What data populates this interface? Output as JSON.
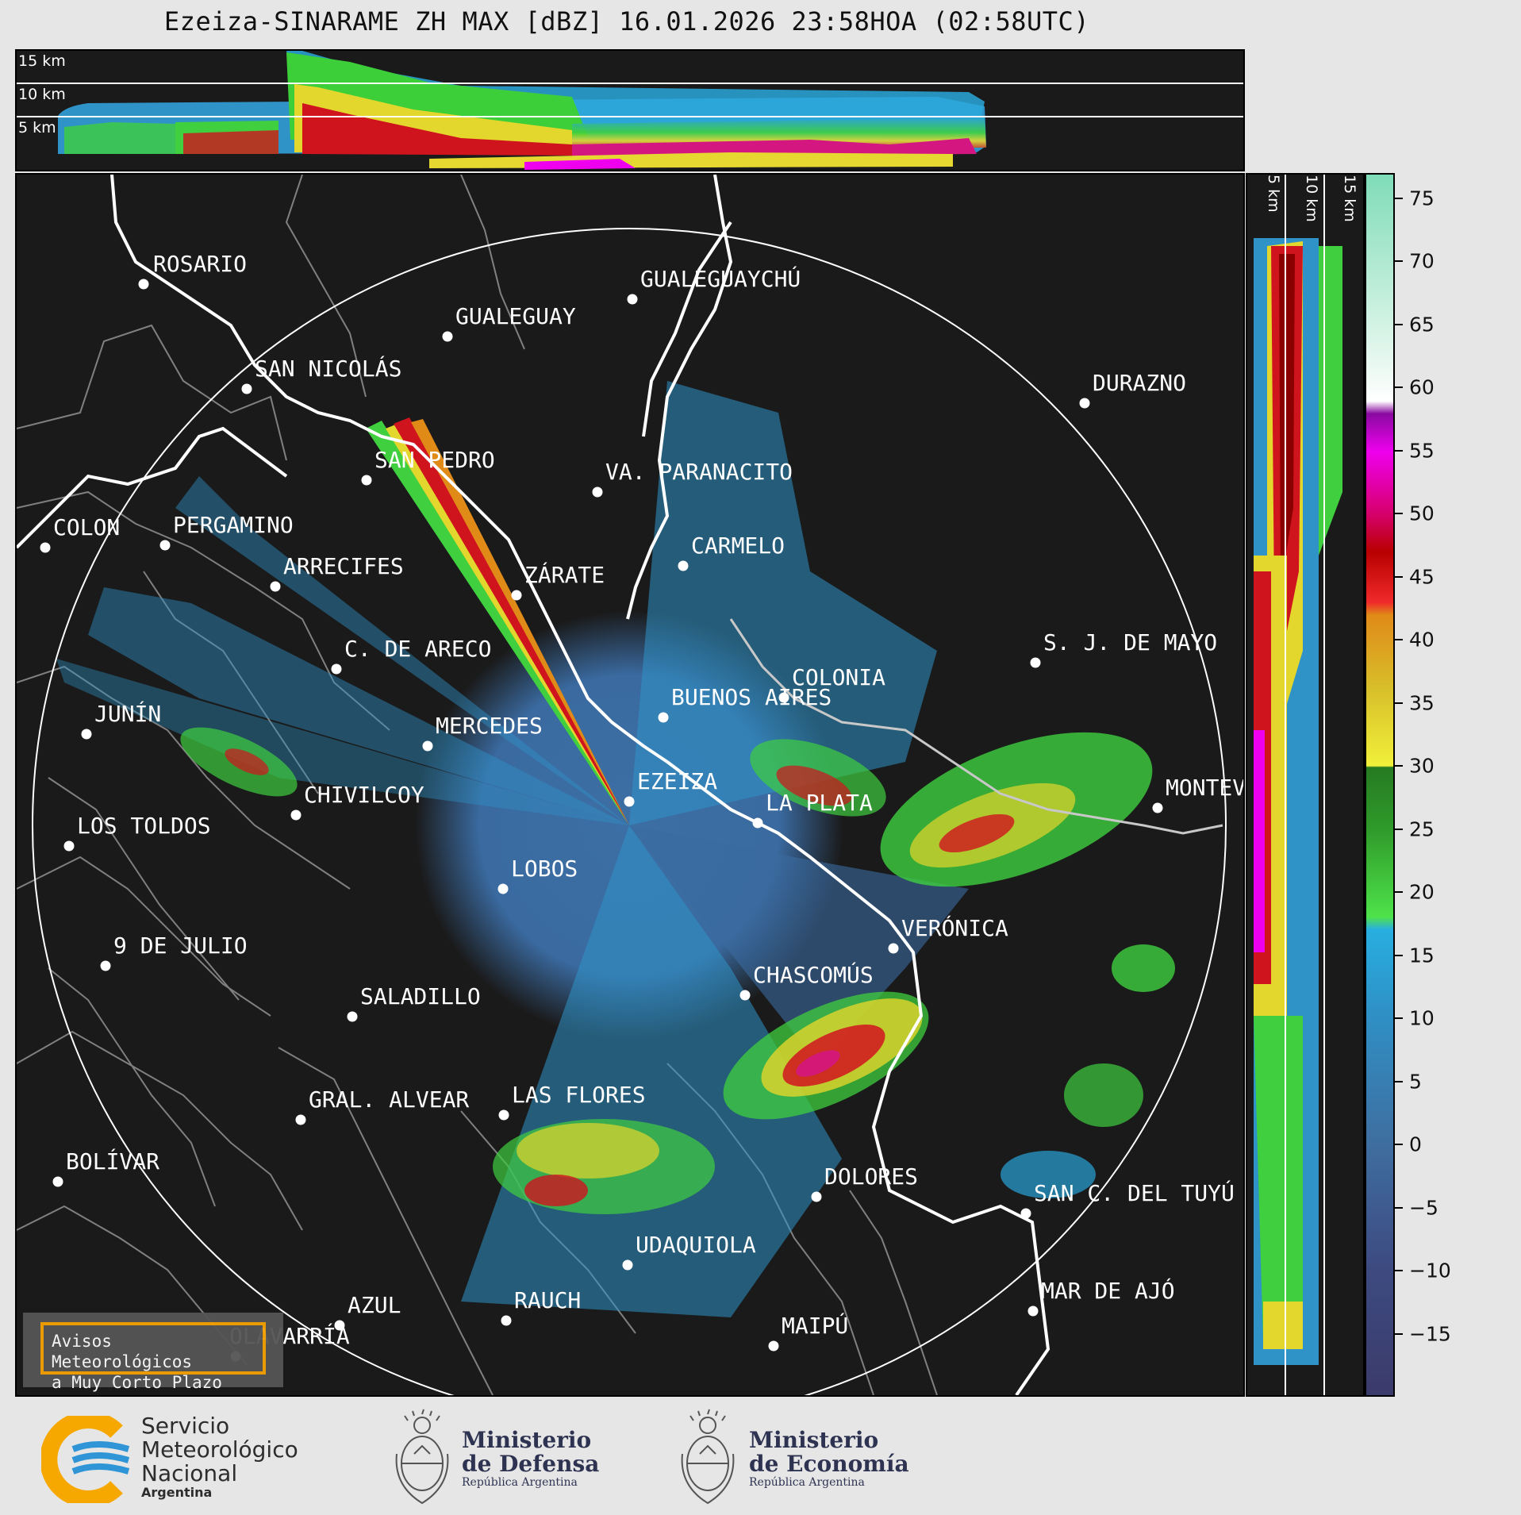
{
  "title": "Ezeiza-SINARAME ZH MAX [dBZ] 16.01.2026 23:58HOA (02:58UTC)",
  "top_panel": {
    "altitude_labels": [
      "15 km",
      "10 km",
      "5 km"
    ]
  },
  "side_panel": {
    "altitude_labels": [
      "5 km",
      "10 km",
      "15 km"
    ]
  },
  "colorbar": {
    "unit": "dBZ",
    "ticks": [
      "75",
      "70",
      "65",
      "60",
      "55",
      "50",
      "45",
      "40",
      "35",
      "30",
      "25",
      "20",
      "15",
      "10",
      "5",
      "0",
      "−5",
      "−10",
      "−15"
    ],
    "range": [
      -20,
      77
    ],
    "stops": [
      {
        "v": -20,
        "c": "#3b3b6b"
      },
      {
        "v": -10,
        "c": "#3d4a80"
      },
      {
        "v": 0,
        "c": "#3f6ea0"
      },
      {
        "v": 10,
        "c": "#2f8fc4"
      },
      {
        "v": 17,
        "c": "#28aee0"
      },
      {
        "v": 18,
        "c": "#4ee24a"
      },
      {
        "v": 25,
        "c": "#2f9a2a"
      },
      {
        "v": 29.9,
        "c": "#267a22"
      },
      {
        "v": 30,
        "c": "#f1f03a"
      },
      {
        "v": 36,
        "c": "#d8c02a"
      },
      {
        "v": 42,
        "c": "#e08a18"
      },
      {
        "v": 43,
        "c": "#f02a2a"
      },
      {
        "v": 47,
        "c": "#b80000"
      },
      {
        "v": 50,
        "c": "#d6006a"
      },
      {
        "v": 55,
        "c": "#ee00ee"
      },
      {
        "v": 58,
        "c": "#8a0aa0"
      },
      {
        "v": 59,
        "c": "#ffffff"
      },
      {
        "v": 62,
        "c": "#e8f8f0"
      },
      {
        "v": 77,
        "c": "#7fdcb8"
      }
    ]
  },
  "cities": [
    {
      "name": "ROSARIO",
      "key": "rosario"
    },
    {
      "name": "GUALEGUAYCHÚ",
      "key": "gualeguaychu"
    },
    {
      "name": "GUALEGUAY",
      "key": "gualeguay"
    },
    {
      "name": "SAN NICOLÁS",
      "key": "san-nicolas"
    },
    {
      "name": "DURAZNO",
      "key": "durazno"
    },
    {
      "name": "SAN PEDRO",
      "key": "san-pedro"
    },
    {
      "name": "VA. PARANACITO",
      "key": "va-paranacito"
    },
    {
      "name": "COLON",
      "key": "colon"
    },
    {
      "name": "PERGAMINO",
      "key": "pergamino"
    },
    {
      "name": "CARMELO",
      "key": "carmelo"
    },
    {
      "name": "ARRECIFES",
      "key": "arrecifes"
    },
    {
      "name": "ZÁRATE",
      "key": "zarate"
    },
    {
      "name": "S. J. DE MAYO",
      "key": "sj-de-mayo"
    },
    {
      "name": "C. DE ARECO",
      "key": "c-de-areco"
    },
    {
      "name": "COLONIA",
      "key": "colonia"
    },
    {
      "name": "JUNÍN",
      "key": "junin"
    },
    {
      "name": "BUENOS AIRES",
      "key": "buenos-aires"
    },
    {
      "name": "MERCEDES",
      "key": "mercedes"
    },
    {
      "name": "EZEIZA",
      "key": "ezeiza"
    },
    {
      "name": "MONTEV",
      "key": "montevideo"
    },
    {
      "name": "CHIVILCOY",
      "key": "chivilcoy"
    },
    {
      "name": "LA PLATA",
      "key": "la-plata"
    },
    {
      "name": "LOS TOLDOS",
      "key": "los-toldos"
    },
    {
      "name": "LOBOS",
      "key": "lobos"
    },
    {
      "name": "VERÓNICA",
      "key": "veronica"
    },
    {
      "name": "9 DE JULIO",
      "key": "9-de-julio"
    },
    {
      "name": "CHASCOMÚS",
      "key": "chascomus"
    },
    {
      "name": "SALADILLO",
      "key": "saladillo"
    },
    {
      "name": "GRAL. ALVEAR",
      "key": "gral-alvear"
    },
    {
      "name": "LAS FLORES",
      "key": "las-flores"
    },
    {
      "name": "BOLÍVAR",
      "key": "bolivar"
    },
    {
      "name": "DOLORES",
      "key": "dolores"
    },
    {
      "name": "SAN C. DEL TUYÚ",
      "key": "san-c-del-tuyu"
    },
    {
      "name": "UDAQUIOLA",
      "key": "udaquiola"
    },
    {
      "name": "AZUL",
      "key": "azul"
    },
    {
      "name": "RAUCH",
      "key": "rauch"
    },
    {
      "name": "MAR DE AJÓ",
      "key": "mar-de-ajo"
    },
    {
      "name": "OLAVARRÍA",
      "key": "olavarria"
    },
    {
      "name": "MAIPÚ",
      "key": "maipu"
    }
  ],
  "aviso": "Avisos Meteorológicos\na Muy Corto Plazo",
  "footer": {
    "smn": [
      "Servicio",
      "Meteorológico",
      "Nacional",
      "Argentina"
    ],
    "defensa": {
      "title1": "Ministerio",
      "title2": "de Defensa",
      "sub": "República Argentina"
    },
    "economia": {
      "title1": "Ministerio",
      "title2": "de Economía",
      "sub": "República Argentina"
    },
    "colors": {
      "smn_orange": "#f6a800",
      "smn_blue": "#2f95d6",
      "ministry_navy": "#2e3352"
    }
  }
}
